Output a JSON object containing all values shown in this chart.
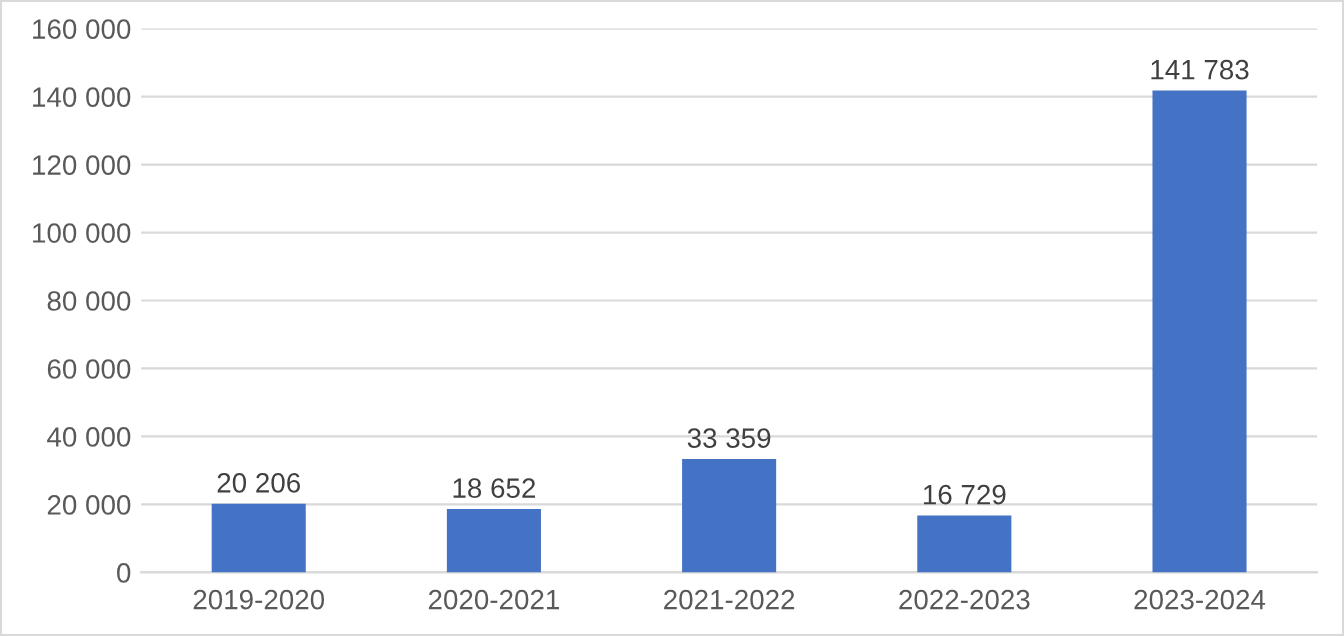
{
  "chart_data": {
    "type": "bar",
    "categories": [
      "2019-2020",
      "2020-2021",
      "2021-2022",
      "2022-2023",
      "2023-2024"
    ],
    "values": [
      20206,
      18652,
      33359,
      16729,
      141783
    ],
    "value_labels": [
      "20 206",
      "18 652",
      "33 359",
      "16 729",
      "141 783"
    ],
    "color": "#4472c4",
    "ylim": [
      0,
      160000
    ],
    "yticks": [
      {
        "value": 0,
        "label": "0"
      },
      {
        "value": 20000,
        "label": "20 000"
      },
      {
        "value": 40000,
        "label": "40 000"
      },
      {
        "value": 60000,
        "label": "60 000"
      },
      {
        "value": 80000,
        "label": "80 000"
      },
      {
        "value": 100000,
        "label": "100 000"
      },
      {
        "value": 120000,
        "label": "120 000"
      },
      {
        "value": 140000,
        "label": "140 000"
      },
      {
        "value": 160000,
        "label": "160 000"
      }
    ],
    "grid": "y"
  }
}
